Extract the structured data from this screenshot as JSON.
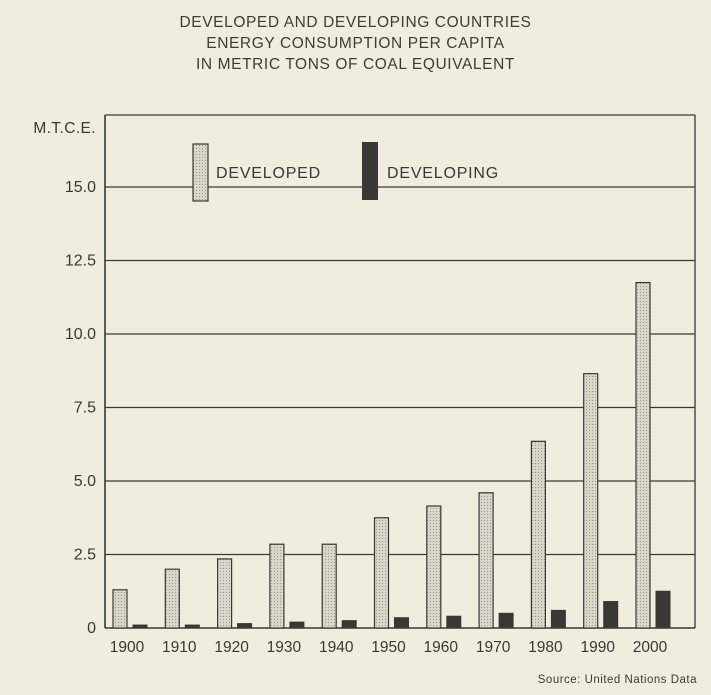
{
  "title_lines": [
    "DEVELOPED AND DEVELOPING COUNTRIES",
    "ENERGY CONSUMPTION PER CAPITA",
    "IN METRIC TONS OF COAL EQUIVALENT"
  ],
  "source": "Source: United Nations Data",
  "colors": {
    "background": "#f1ecdd",
    "developed_fill": "#d8d3c6",
    "developing_fill": "#3a3735",
    "line": "#3a3834"
  },
  "chart_data": {
    "type": "bar",
    "title": "DEVELOPED AND DEVELOPING COUNTRIES ENERGY CONSUMPTION PER CAPITA IN METRIC TONS OF COAL EQUIVALENT",
    "ylabel": "M.T.C.E.",
    "xlabel": "",
    "ylim": [
      0,
      17
    ],
    "yticks": [
      0,
      2.5,
      5.0,
      7.5,
      10.0,
      12.5,
      15.0
    ],
    "ytick_labels": [
      "0",
      "2.5",
      "5.0",
      "7.5",
      "10.0",
      "12.5",
      "15.0"
    ],
    "grid": "horizontal",
    "legend_position": "top-left",
    "categories": [
      "1900",
      "1910",
      "1920",
      "1930",
      "1940",
      "1950",
      "1960",
      "1970",
      "1980",
      "1990",
      "2000"
    ],
    "series": [
      {
        "name": "DEVELOPED",
        "values": [
          1.3,
          2.0,
          2.35,
          2.85,
          2.85,
          3.75,
          4.15,
          4.6,
          6.35,
          8.65,
          11.75
        ]
      },
      {
        "name": "DEVELOPING",
        "values": [
          0.1,
          0.1,
          0.15,
          0.2,
          0.25,
          0.35,
          0.4,
          0.5,
          0.6,
          0.9,
          1.25
        ]
      }
    ]
  }
}
